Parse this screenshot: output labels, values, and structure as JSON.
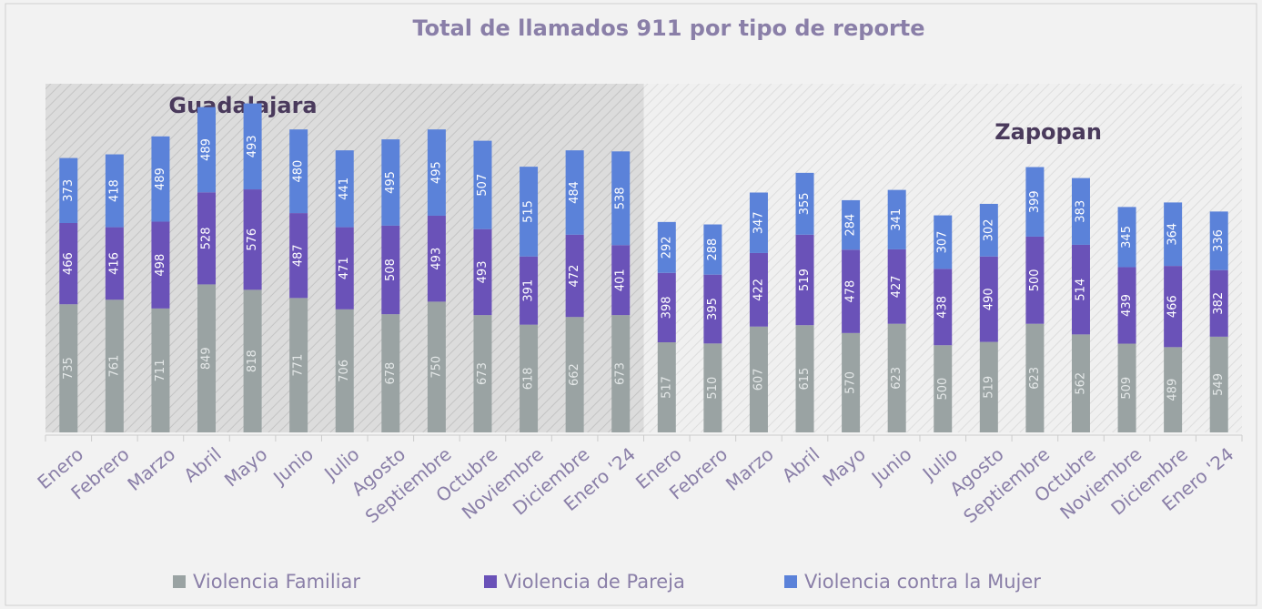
{
  "chart_data": {
    "type": "stacked_bar",
    "title": "Total de llamados 911 por tipo de reporte",
    "annotations": [
      "Guadalajara",
      "Zapopan"
    ],
    "categories": [
      "Enero",
      "Febrero",
      "Marzo",
      "Abril",
      "Mayo",
      "Junio",
      "Julio",
      "Agosto",
      "Septiembre",
      "Octubre",
      "Noviembre",
      "Diciembre",
      "Enero '24",
      "Enero",
      "Febrero",
      "Marzo",
      "Abril",
      "Mayo",
      "Junio",
      "Julio",
      "Agosto",
      "Septiembre",
      "Octubre",
      "Noviembre",
      "Diciembre",
      "Enero '24"
    ],
    "series": [
      {
        "name": "Violencia Familiar",
        "color": "#9aa3a3",
        "values": [
          735,
          761,
          711,
          849,
          818,
          771,
          706,
          678,
          750,
          673,
          618,
          662,
          673,
          517,
          510,
          607,
          615,
          570,
          623,
          500,
          519,
          623,
          562,
          509,
          489,
          549
        ]
      },
      {
        "name": "Violencia de Pareja",
        "color": "#6a52b8",
        "values": [
          466,
          416,
          498,
          528,
          576,
          487,
          471,
          508,
          493,
          493,
          391,
          472,
          401,
          398,
          395,
          422,
          519,
          478,
          427,
          438,
          490,
          500,
          514,
          439,
          466,
          382
        ]
      },
      {
        "name": "Violencia contra la Mujer",
        "color": "#5b82d9",
        "values": [
          373,
          418,
          489,
          489,
          493,
          480,
          441,
          495,
          495,
          507,
          515,
          484,
          538,
          292,
          288,
          347,
          355,
          284,
          341,
          307,
          302,
          399,
          383,
          345,
          364,
          336
        ]
      }
    ],
    "ylim": [
      0,
      2000
    ],
    "legend": "bottom"
  }
}
